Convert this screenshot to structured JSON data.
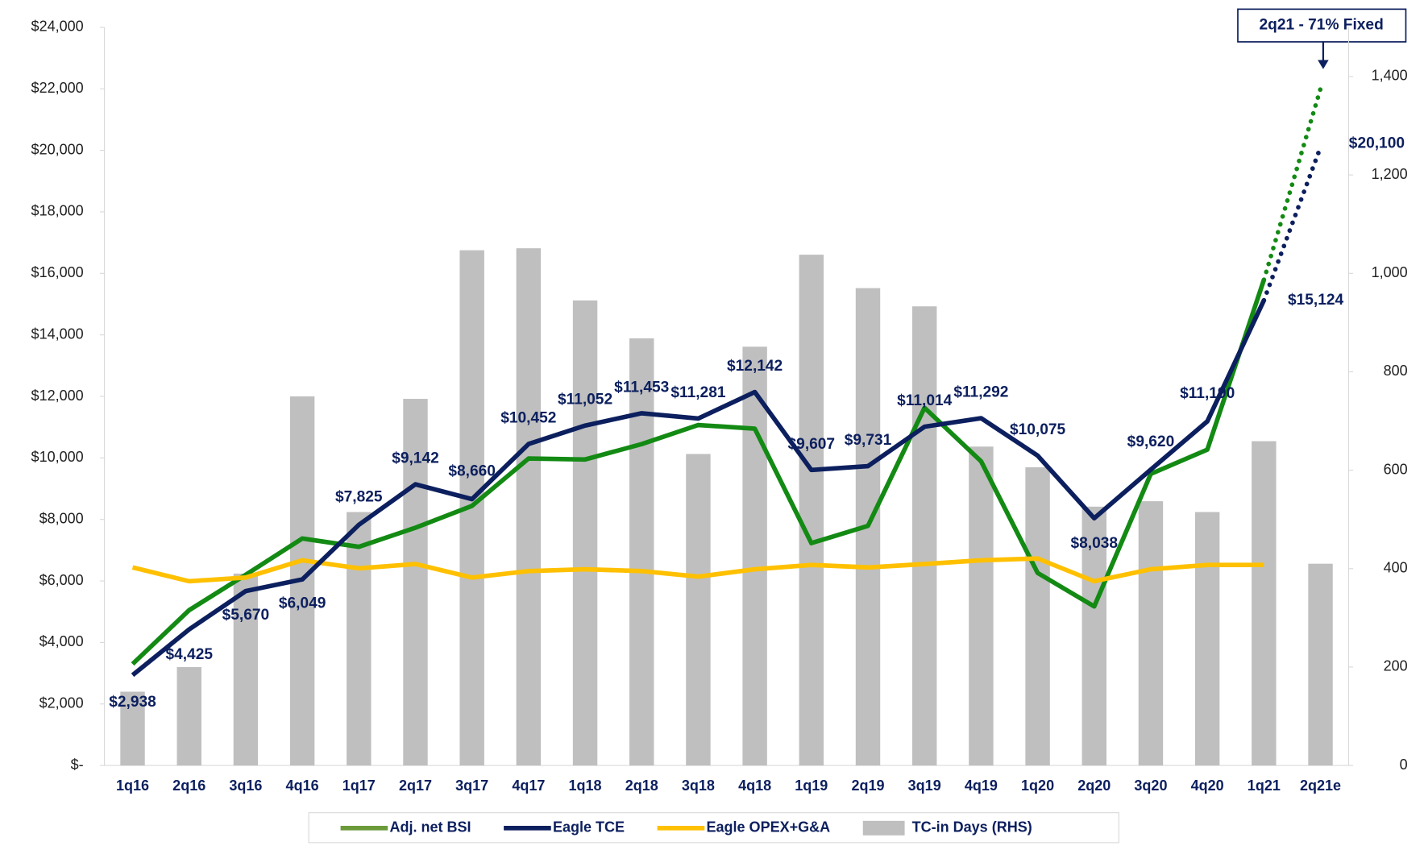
{
  "chart_data": {
    "type": "bar-line",
    "categories": [
      "1q16",
      "2q16",
      "3q16",
      "4q16",
      "1q17",
      "2q17",
      "3q17",
      "4q17",
      "1q18",
      "2q18",
      "3q18",
      "4q18",
      "1q19",
      "2q19",
      "3q19",
      "4q19",
      "1q20",
      "2q20",
      "3q20",
      "4q20",
      "1q21",
      "2q21e"
    ],
    "ylim": [
      0,
      24000
    ],
    "yticks": [
      {
        "value": 0,
        "label": "$-"
      },
      {
        "value": 2000,
        "label": "$2,000"
      },
      {
        "value": 4000,
        "label": "$4,000"
      },
      {
        "value": 6000,
        "label": "$6,000"
      },
      {
        "value": 8000,
        "label": "$8,000"
      },
      {
        "value": 10000,
        "label": "$10,000"
      },
      {
        "value": 12000,
        "label": "$12,000"
      },
      {
        "value": 14000,
        "label": "$14,000"
      },
      {
        "value": 16000,
        "label": "$16,000"
      },
      {
        "value": 18000,
        "label": "$18,000"
      },
      {
        "value": 20000,
        "label": "$20,000"
      },
      {
        "value": 22000,
        "label": "$22,000"
      },
      {
        "value": 24000,
        "label": "$24,000"
      }
    ],
    "y2lim": [
      0,
      1500
    ],
    "y2ticks": [
      0,
      200,
      400,
      600,
      800,
      {
        "value": 1000,
        "label": "1,000"
      },
      {
        "value": 1200,
        "label": "1,200"
      },
      {
        "value": 1400,
        "label": "1,400"
      }
    ],
    "series": [
      {
        "name": "TC-in Days (RHS)",
        "kind": "bar",
        "axis": "y2",
        "color": "#bfbfbf",
        "values": [
          150,
          200,
          390,
          750,
          515,
          745,
          1047,
          1051,
          945,
          868,
          633,
          851,
          1038,
          970,
          933,
          648,
          606,
          526,
          537,
          515,
          659,
          410
        ]
      },
      {
        "name": "Adj. net BSI",
        "kind": "line",
        "color": "#138a13",
        "legend_color": "#6b9a3a",
        "values": [
          3300,
          5050,
          6200,
          7380,
          7110,
          7730,
          8440,
          9980,
          9950,
          10450,
          11070,
          10950,
          7230,
          7790,
          11630,
          9890,
          6260,
          5170,
          9480,
          10270,
          15790,
          22000
        ]
      },
      {
        "name": "Eagle TCE",
        "kind": "line",
        "color": "#0c1f5e",
        "values": [
          2938,
          4425,
          5670,
          6049,
          7825,
          9142,
          8660,
          10452,
          11052,
          11453,
          11281,
          12142,
          9607,
          9731,
          11014,
          11292,
          10075,
          8038,
          9620,
          11190,
          15124,
          20100
        ],
        "value_labels": [
          "$2,938",
          "$4,425",
          "$5,670",
          "$6,049",
          "$7,825",
          "$9,142",
          "$8,660",
          "$10,452",
          "$11,052",
          "$11,453",
          "$11,281",
          "$12,142",
          "$9,607",
          "$9,731",
          "$11,014",
          "$11,292",
          "$10,075",
          "$8,038",
          "$9,620",
          "$11,190",
          "$15,124",
          "$20,100"
        ]
      },
      {
        "name": "Eagle OPEX+G&A",
        "kind": "line",
        "color": "#ffc000",
        "values": [
          6440,
          5990,
          6110,
          6670,
          6410,
          6550,
          6110,
          6320,
          6380,
          6320,
          6140,
          6380,
          6520,
          6440,
          6550,
          6670,
          6730,
          5990,
          6380,
          6520,
          6520,
          null
        ]
      }
    ],
    "legend_order": [
      1,
      2,
      3,
      0
    ],
    "annotation": "2q21 - 71% Fixed"
  }
}
